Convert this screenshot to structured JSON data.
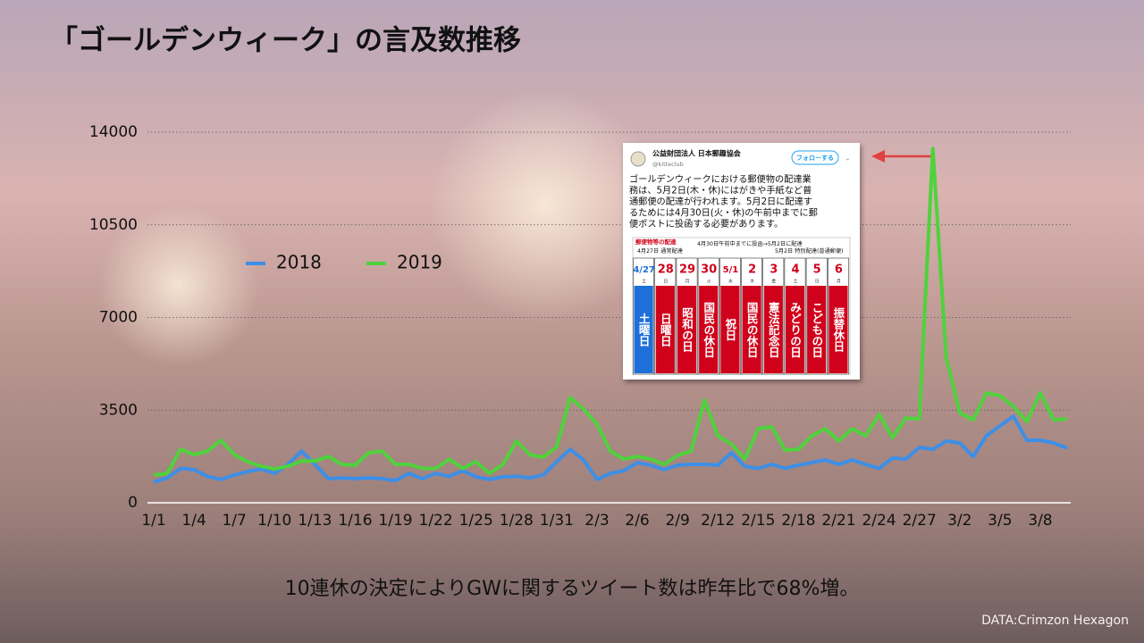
{
  "title": "「ゴールデンウィーク」の言及数推移",
  "chart_data": {
    "type": "line",
    "categories": [
      "1/1",
      null,
      null,
      "1/4",
      null,
      null,
      "1/7",
      null,
      null,
      "1/10",
      null,
      null,
      "1/13",
      null,
      null,
      "1/16",
      null,
      null,
      "1/19",
      null,
      null,
      "1/22",
      null,
      null,
      "1/25",
      null,
      null,
      "1/28",
      null,
      null,
      "1/31",
      null,
      null,
      "2/3",
      null,
      null,
      "2/6",
      null,
      null,
      "2/9",
      null,
      null,
      "2/12",
      null,
      null,
      "2/15",
      null,
      null,
      "2/18",
      null,
      null,
      "2/21",
      null,
      null,
      "2/24",
      null,
      null,
      "2/27",
      null,
      null,
      "3/2",
      null,
      null,
      "3/5",
      null,
      null,
      "3/8",
      null,
      null
    ],
    "series": [
      {
        "name": "2018",
        "color": "#3d8fe6",
        "values": [
          775,
          940,
          1300,
          1250,
          1000,
          880,
          1050,
          1180,
          1280,
          1110,
          1450,
          1950,
          1450,
          910,
          940,
          910,
          940,
          910,
          840,
          1110,
          910,
          1110,
          1000,
          1210,
          980,
          880,
          980,
          1000,
          940,
          1050,
          1550,
          2020,
          1620,
          880,
          1110,
          1210,
          1520,
          1420,
          1250,
          1420,
          1450,
          1450,
          1420,
          1890,
          1380,
          1300,
          1450,
          1300,
          1420,
          1520,
          1620,
          1450,
          1620,
          1450,
          1300,
          1690,
          1650,
          2090,
          2020,
          2330,
          2260,
          1750,
          2530,
          2900,
          3270,
          2360,
          2360,
          2260,
          2060
        ]
      },
      {
        "name": "2019",
        "color": "#4fd23c",
        "values": [
          1050,
          1110,
          2020,
          1820,
          1950,
          2360,
          1820,
          1550,
          1380,
          1280,
          1380,
          1580,
          1580,
          1750,
          1450,
          1420,
          1890,
          1950,
          1450,
          1450,
          1300,
          1300,
          1650,
          1300,
          1550,
          1110,
          1450,
          2330,
          1820,
          1720,
          2120,
          3980,
          3540,
          2970,
          1950,
          1650,
          1750,
          1650,
          1450,
          1790,
          1950,
          3880,
          2530,
          2220,
          1650,
          2800,
          2870,
          1990,
          2020,
          2530,
          2800,
          2330,
          2800,
          2530,
          3340,
          2460,
          3200,
          3170,
          13380,
          5490,
          3400,
          3130,
          4150,
          4040,
          3640,
          3070,
          4150,
          3130,
          3170
        ]
      }
    ],
    "ylim": [
      0,
      14000
    ],
    "yticks": [
      0,
      3500,
      7000,
      10500,
      14000
    ],
    "grid": true,
    "legend": "top"
  },
  "caption": "10連休の決定によりGWに関するツイート数は昨年比で68%増。",
  "source": "DATA:Crimzon Hexagon",
  "tweet": {
    "account_name": "公益財団法人 日本郵趣協会",
    "handle": "@kitteclub",
    "follow_button": "フォローする",
    "body": [
      "ゴールデンウィークにおける郵便物の配達業",
      "務は、5月2日(木・休)にはがきや手紙など普",
      "通郵便の配達が行われます。5月2日に配達す",
      "るためには4月30日(火・休)の午前中までに郵",
      "便ポストに投函する必要があります。"
    ],
    "calendar": {
      "heading": "郵便物等の配達",
      "notes": [
        "4月30日午前中までに投函→5月2日に配達",
        "4月27日 通常配達",
        "5月2日 特別配達(普通郵便)"
      ],
      "days": [
        {
          "date": "4/27",
          "weekday": "土",
          "label": "土曜日"
        },
        {
          "date": "28",
          "weekday": "日",
          "label": "日曜日"
        },
        {
          "date": "29",
          "weekday": "月",
          "label": "昭和の日"
        },
        {
          "date": "30",
          "weekday": "火",
          "label": "国民の休日"
        },
        {
          "date": "5/1",
          "weekday": "水",
          "label": "祝日"
        },
        {
          "date": "2",
          "weekday": "木",
          "label": "国民の休日"
        },
        {
          "date": "3",
          "weekday": "金",
          "label": "憲法記念日"
        },
        {
          "date": "4",
          "weekday": "土",
          "label": "みどりの日"
        },
        {
          "date": "5",
          "weekday": "日",
          "label": "こどもの日"
        },
        {
          "date": "6",
          "weekday": "月",
          "label": "振替休日"
        }
      ]
    }
  }
}
